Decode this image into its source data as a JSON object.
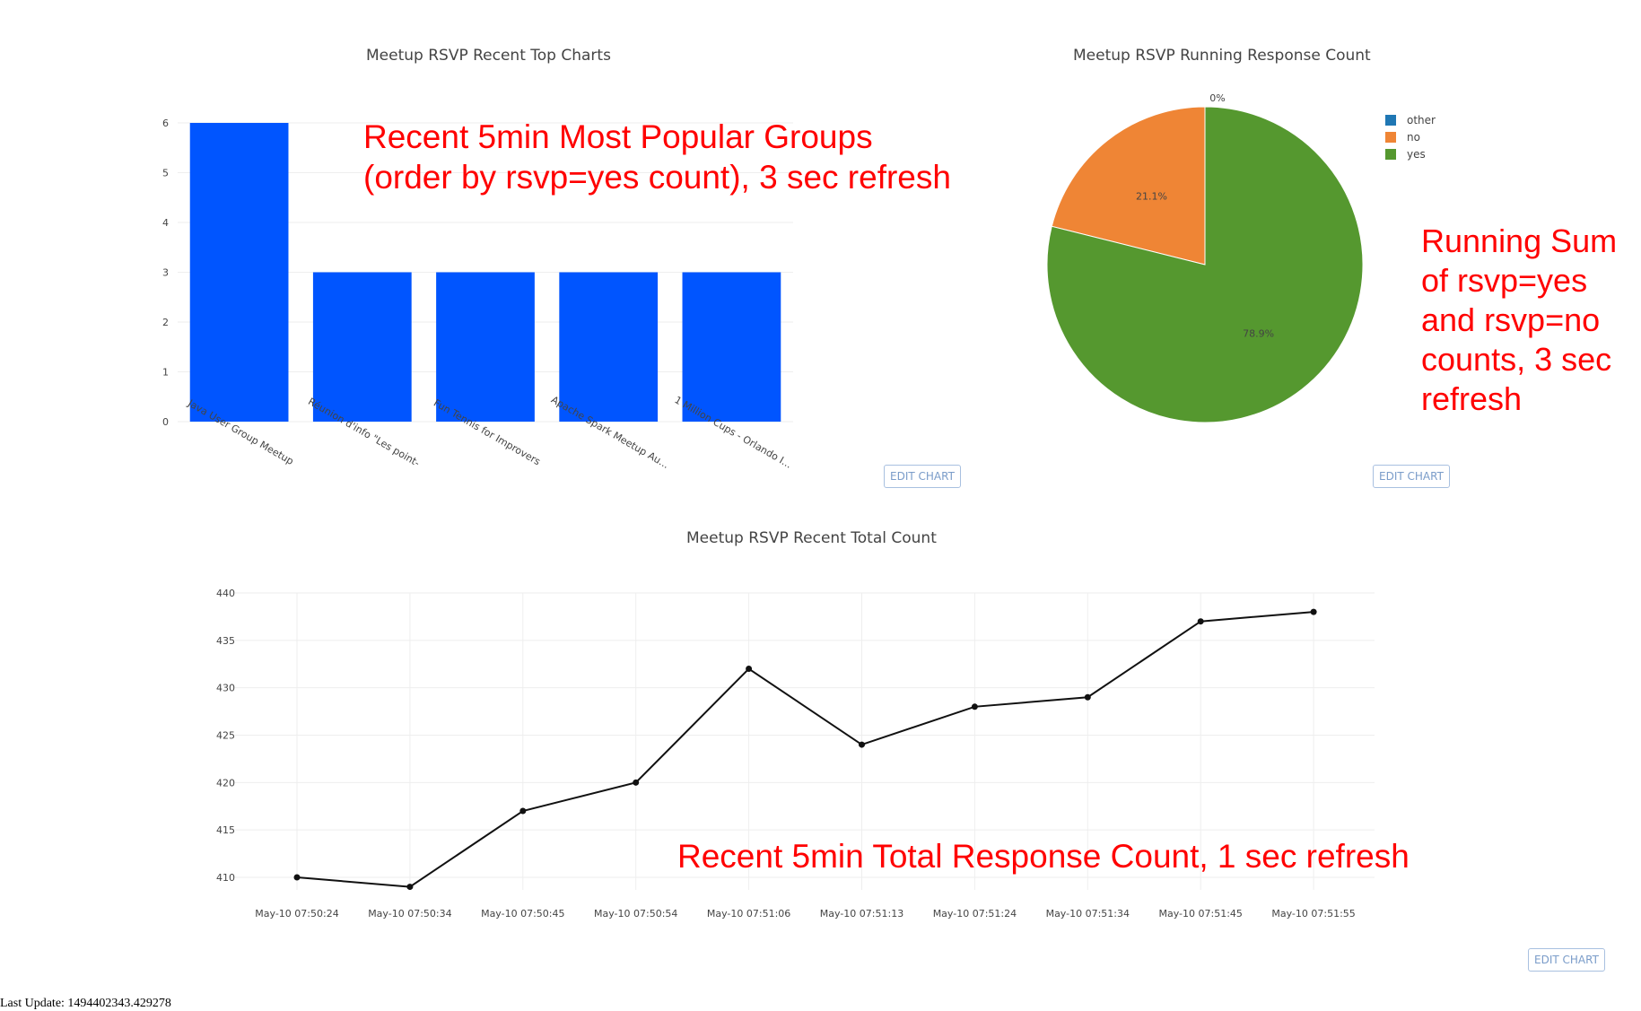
{
  "colors": {
    "bar": "#0055ff",
    "pie_other": "#1f77b4",
    "pie_no": "#ef8535",
    "pie_yes": "#55982f",
    "line": "#111111",
    "annotation": "#ff0000"
  },
  "edit_chart_label": "EDIT CHART",
  "annotations": {
    "bar": "Recent 5min Most Popular Groups\n(order by rsvp=yes count), 3 sec refresh",
    "pie": "Running Sum\nof rsvp=yes\nand rsvp=no\ncounts, 3 sec\nrefresh",
    "line": "Recent 5min Total Response Count, 1 sec refresh"
  },
  "last_update": "Last Update: 1494402343.429278",
  "chart_data": [
    {
      "type": "bar",
      "title": "Meetup RSVP Recent Top Charts",
      "categories": [
        "Java User Group Meetup",
        "Réunion d'info \"Les point-",
        "Fun Tennis for Improvers",
        "Apache Spark Meetup Au...",
        "1 Million Cups - Orlando I..."
      ],
      "values": [
        6,
        3,
        3,
        3,
        3
      ],
      "yticks": [
        0,
        1,
        2,
        3,
        4,
        5,
        6
      ],
      "ylim": [
        0,
        6
      ],
      "grid": true
    },
    {
      "type": "pie",
      "title": "Meetup RSVP Running Response Count",
      "slices": [
        {
          "label": "other",
          "value": 0,
          "text": "0%"
        },
        {
          "label": "no",
          "value": 21.1,
          "text": "21.1%"
        },
        {
          "label": "yes",
          "value": 78.9,
          "text": "78.9%"
        }
      ],
      "legend": "top-right"
    },
    {
      "type": "line",
      "title": "Meetup RSVP Recent Total Count",
      "x": [
        "May-10 07:50:24",
        "May-10 07:50:34",
        "May-10 07:50:45",
        "May-10 07:50:54",
        "May-10 07:51:06",
        "May-10 07:51:13",
        "May-10 07:51:24",
        "May-10 07:51:34",
        "May-10 07:51:45",
        "May-10 07:51:55"
      ],
      "y": [
        410,
        409,
        417,
        420,
        432,
        424,
        428,
        429,
        437,
        438
      ],
      "yticks": [
        410,
        415,
        420,
        425,
        430,
        435,
        440
      ],
      "ylim": [
        408,
        440
      ],
      "grid": true
    }
  ]
}
